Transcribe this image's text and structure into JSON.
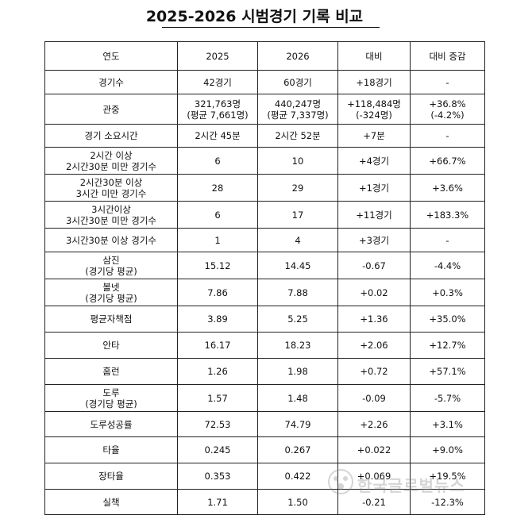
{
  "title": "2025-2026 시범경기 기록 비교",
  "table": {
    "headers": [
      "연도",
      "2025",
      "2026",
      "대비",
      "대비 증감"
    ],
    "rows": [
      {
        "label": [
          "경기수"
        ],
        "y2025": [
          "42경기"
        ],
        "y2026": [
          "60경기"
        ],
        "diff": [
          "+18경기"
        ],
        "pct": [
          "-"
        ]
      },
      {
        "label": [
          "관중"
        ],
        "y2025": [
          "321,763명",
          "(평균 7,661명)"
        ],
        "y2026": [
          "440,247명",
          "(평균 7,337명)"
        ],
        "diff": [
          "+118,484명",
          "(-324명)"
        ],
        "pct": [
          "+36.8%",
          "(-4.2%)"
        ]
      },
      {
        "label": [
          "경기 소요시간"
        ],
        "y2025": [
          "2시간 45분"
        ],
        "y2026": [
          "2시간 52분"
        ],
        "diff": [
          "+7분"
        ],
        "pct": [
          "-"
        ]
      },
      {
        "label": [
          "2시간 이상",
          "2시간30분 미만 경기수"
        ],
        "y2025": [
          "6"
        ],
        "y2026": [
          "10"
        ],
        "diff": [
          "+4경기"
        ],
        "pct": [
          "+66.7%"
        ]
      },
      {
        "label": [
          "2시간30분 이상",
          "3시간 미만 경기수"
        ],
        "y2025": [
          "28"
        ],
        "y2026": [
          "29"
        ],
        "diff": [
          "+1경기"
        ],
        "pct": [
          "+3.6%"
        ]
      },
      {
        "label": [
          "3시간이상",
          "3시간30분 미만 경기수"
        ],
        "y2025": [
          "6"
        ],
        "y2026": [
          "17"
        ],
        "diff": [
          "+11경기"
        ],
        "pct": [
          "+183.3%"
        ]
      },
      {
        "label": [
          "3시간30분 이상 경기수"
        ],
        "y2025": [
          "1"
        ],
        "y2026": [
          "4"
        ],
        "diff": [
          "+3경기"
        ],
        "pct": [
          "-"
        ]
      },
      {
        "label": [
          "삼진",
          "(경기당 평균)"
        ],
        "y2025": [
          "15.12"
        ],
        "y2026": [
          "14.45"
        ],
        "diff": [
          "-0.67"
        ],
        "pct": [
          "-4.4%"
        ]
      },
      {
        "label": [
          "볼넷",
          "(경기당 평균)"
        ],
        "y2025": [
          "7.86"
        ],
        "y2026": [
          "7.88"
        ],
        "diff": [
          "+0.02"
        ],
        "pct": [
          "+0.3%"
        ]
      },
      {
        "label": [
          "평균자책점"
        ],
        "y2025": [
          "3.89"
        ],
        "y2026": [
          "5.25"
        ],
        "diff": [
          "+1.36"
        ],
        "pct": [
          "+35.0%"
        ]
      },
      {
        "label": [
          "안타"
        ],
        "y2025": [
          "16.17"
        ],
        "y2026": [
          "18.23"
        ],
        "diff": [
          "+2.06"
        ],
        "pct": [
          "+12.7%"
        ]
      },
      {
        "label": [
          "홈런"
        ],
        "y2025": [
          "1.26"
        ],
        "y2026": [
          "1.98"
        ],
        "diff": [
          "+0.72"
        ],
        "pct": [
          "+57.1%"
        ]
      },
      {
        "label": [
          "도루",
          "(경기당 평균)"
        ],
        "y2025": [
          "1.57"
        ],
        "y2026": [
          "1.48"
        ],
        "diff": [
          "-0.09"
        ],
        "pct": [
          "-5.7%"
        ]
      },
      {
        "label": [
          "도루성공률"
        ],
        "y2025": [
          "72.53"
        ],
        "y2026": [
          "74.79"
        ],
        "diff": [
          "+2.26"
        ],
        "pct": [
          "+3.1%"
        ]
      },
      {
        "label": [
          "타율"
        ],
        "y2025": [
          "0.245"
        ],
        "y2026": [
          "0.267"
        ],
        "diff": [
          "+0.022"
        ],
        "pct": [
          "+9.0%"
        ]
      },
      {
        "label": [
          "장타율"
        ],
        "y2025": [
          "0.353"
        ],
        "y2026": [
          "0.422"
        ],
        "diff": [
          "+0.069"
        ],
        "pct": [
          "+19.5%"
        ]
      },
      {
        "label": [
          "실책"
        ],
        "y2025": [
          "1.71"
        ],
        "y2026": [
          "1.50"
        ],
        "diff": [
          "-0.21"
        ],
        "pct": [
          "-12.3%"
        ]
      }
    ]
  },
  "watermark": "한국글로벌뉴스"
}
